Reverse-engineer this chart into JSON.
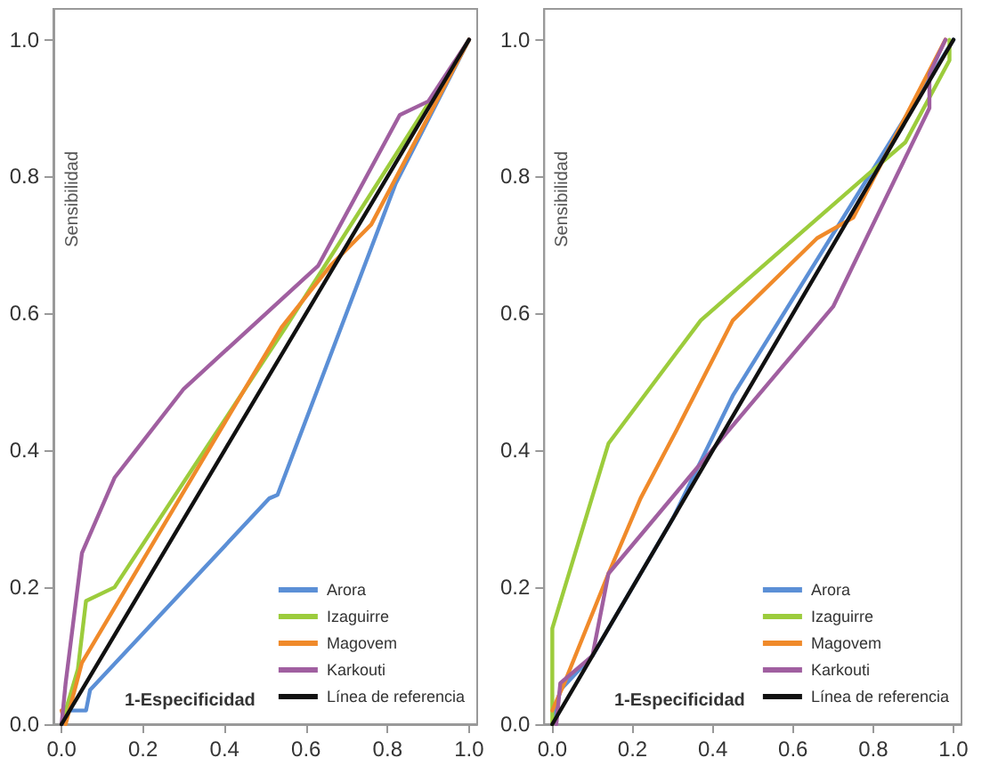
{
  "chart_data": [
    {
      "type": "line",
      "xlabel": "1-Especificidad",
      "ylabel": "Sensibilidad",
      "xlim": [
        -0.02,
        1.02
      ],
      "ylim": [
        0,
        1.045
      ],
      "xticks": [
        {
          "value": 0,
          "label": "0.0"
        },
        {
          "value": 0.2,
          "label": "0.2"
        },
        {
          "value": 0.4,
          "label": "0.4"
        },
        {
          "value": 0.6,
          "label": "0.6"
        },
        {
          "value": 0.8,
          "label": "0.8"
        },
        {
          "value": 1,
          "label": "1.0"
        }
      ],
      "yticks": [
        {
          "value": 0,
          "label": "0.0"
        },
        {
          "value": 0.2,
          "label": "0.2"
        },
        {
          "value": 0.4,
          "label": "0.4"
        },
        {
          "value": 0.6,
          "label": "0.6"
        },
        {
          "value": 0.8,
          "label": "0.8"
        },
        {
          "value": 1,
          "label": "1.0"
        }
      ],
      "grid": false,
      "legend": "bottom right",
      "marker": "none",
      "line_style": "solid",
      "series": [
        {
          "name": "Arora",
          "color": "#5b8fd6",
          "x": [
            0,
            0.01,
            0.06,
            0.07,
            0.51,
            0.53,
            0.82,
            1
          ],
          "values": [
            0,
            0.02,
            0.02,
            0.05,
            0.33,
            0.335,
            0.79,
            1
          ]
        },
        {
          "name": "Izaguirre",
          "color": "#9ccc3c",
          "x": [
            0,
            0.04,
            0.06,
            0.13,
            0.55,
            1
          ],
          "values": [
            0,
            0.08,
            0.18,
            0.2,
            0.58,
            1
          ]
        },
        {
          "name": "Magovem",
          "color": "#f08a2a",
          "x": [
            0,
            0.01,
            0.05,
            0.54,
            0.66,
            0.76,
            1
          ],
          "values": [
            0.02,
            0,
            0.09,
            0.58,
            0.67,
            0.73,
            1
          ]
        },
        {
          "name": "Karkouti",
          "color": "#a05fa0",
          "x": [
            0,
            0.01,
            0.05,
            0.13,
            0.3,
            0.63,
            0.83,
            0.9,
            1
          ],
          "values": [
            0,
            0.06,
            0.25,
            0.36,
            0.49,
            0.67,
            0.89,
            0.91,
            1
          ]
        },
        {
          "name": "Línea de referencia",
          "color": "#111111",
          "x": [
            0,
            1
          ],
          "values": [
            0,
            1
          ]
        }
      ]
    },
    {
      "type": "line",
      "xlabel": "1-Especificidad",
      "ylabel": "Sensibilidad",
      "xlim": [
        -0.02,
        1.02
      ],
      "ylim": [
        0,
        1.045
      ],
      "xticks": [
        {
          "value": 0,
          "label": "0.0"
        },
        {
          "value": 0.2,
          "label": "0.2"
        },
        {
          "value": 0.4,
          "label": "0.4"
        },
        {
          "value": 0.6,
          "label": "0.6"
        },
        {
          "value": 0.8,
          "label": "0.8"
        },
        {
          "value": 1,
          "label": "1.0"
        }
      ],
      "yticks": [
        {
          "value": 0,
          "label": "0.0"
        },
        {
          "value": 0.2,
          "label": "0.2"
        },
        {
          "value": 0.4,
          "label": "0.4"
        },
        {
          "value": 0.6,
          "label": "0.6"
        },
        {
          "value": 0.8,
          "label": "0.8"
        },
        {
          "value": 1,
          "label": "1.0"
        }
      ],
      "grid": false,
      "legend": "bottom right",
      "marker": "none",
      "line_style": "solid",
      "series": [
        {
          "name": "Arora",
          "color": "#5b8fd6",
          "x": [
            0,
            0.02,
            0.1,
            0.3,
            0.45,
            1
          ],
          "values": [
            0,
            0.05,
            0.1,
            0.3,
            0.48,
            1
          ]
        },
        {
          "name": "Izaguirre",
          "color": "#9ccc3c",
          "x": [
            0,
            0,
            0.14,
            0.37,
            0.8,
            0.88,
            0.99,
            0.99
          ],
          "values": [
            0,
            0.14,
            0.41,
            0.59,
            0.81,
            0.85,
            0.97,
            1
          ]
        },
        {
          "name": "Magovem",
          "color": "#f08a2a",
          "x": [
            0,
            0.03,
            0.14,
            0.22,
            0.31,
            0.45,
            0.66,
            0.75,
            0.98
          ],
          "values": [
            0.02,
            0.06,
            0.22,
            0.33,
            0.43,
            0.59,
            0.71,
            0.74,
            1
          ]
        },
        {
          "name": "Karkouti",
          "color": "#a05fa0",
          "x": [
            0.01,
            0.02,
            0.1,
            0.14,
            0.34,
            0.7,
            0.94,
            0.94,
            0.98
          ],
          "values": [
            0,
            0.06,
            0.1,
            0.22,
            0.36,
            0.61,
            0.9,
            0.95,
            1
          ]
        },
        {
          "name": "Línea de referencia",
          "color": "#111111",
          "x": [
            0,
            1
          ],
          "values": [
            0,
            1
          ]
        }
      ]
    }
  ]
}
